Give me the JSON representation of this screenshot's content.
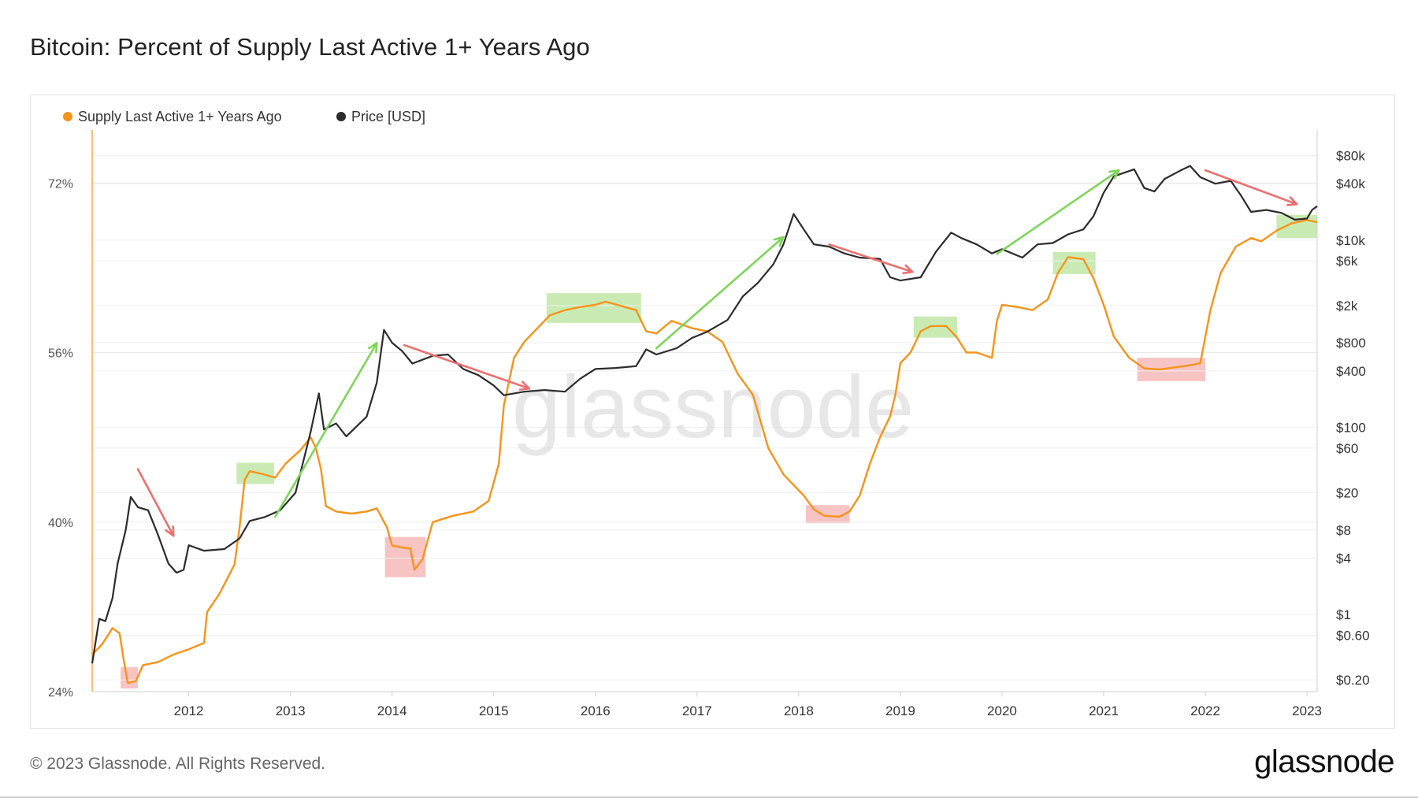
{
  "title": "Bitcoin: Percent of Supply Last Active 1+ Years Ago",
  "footer": {
    "copyright": "© 2023 Glassnode. All Rights Reserved.",
    "logo": "glassnode"
  },
  "watermark": "glassnode",
  "colors": {
    "supply": "#f7931a",
    "price": "#2b2b2b",
    "up_arrow": "#7fd45a",
    "down_arrow": "#ec6f6f",
    "green_box": "#bfe8a6",
    "red_box": "#f6b8b8"
  },
  "legend": [
    {
      "label": "Supply Last Active 1+ Years Ago",
      "color": "#f7931a"
    },
    {
      "label": "Price [USD]",
      "color": "#2b2b2b"
    }
  ],
  "chart_data": {
    "type": "line",
    "title": "Bitcoin: Percent of Supply Last Active 1+ Years Ago",
    "x_range": [
      2011.05,
      2023.1
    ],
    "x_ticks": [
      2012,
      2013,
      2014,
      2015,
      2016,
      2017,
      2018,
      2019,
      2020,
      2021,
      2022,
      2023
    ],
    "x_tick_labels": [
      "2012",
      "2013",
      "2014",
      "2015",
      "2016",
      "2017",
      "2018",
      "2019",
      "2020",
      "2021",
      "2022",
      "2023"
    ],
    "y_left": {
      "label": "Supply Last Active 1+ Years Ago",
      "range": [
        24,
        77
      ],
      "ticks": [
        24,
        40,
        56,
        72
      ],
      "tick_labels": [
        "24%",
        "40%",
        "56%",
        "72%"
      ]
    },
    "y_right": {
      "label": "Price [USD]",
      "scale": "log",
      "range": [
        0.15,
        150000
      ],
      "ticks": [
        0.2,
        0.6,
        1,
        4,
        8,
        20,
        60,
        100,
        400,
        800,
        2000,
        6000,
        10000,
        40000,
        80000
      ],
      "tick_labels": [
        "$0.20",
        "$0.60",
        "$1",
        "$4",
        "$8",
        "$20",
        "$60",
        "$100",
        "$400",
        "$800",
        "$2k",
        "$6k",
        "$10k",
        "$40k",
        "$80k"
      ]
    },
    "series": [
      {
        "name": "Supply Last Active 1+ Years Ago",
        "axis": "left",
        "unit": "%",
        "points": [
          [
            2011.05,
            27.5
          ],
          [
            2011.15,
            28.5
          ],
          [
            2011.25,
            30.0
          ],
          [
            2011.32,
            29.5
          ],
          [
            2011.36,
            27.0
          ],
          [
            2011.4,
            24.8
          ],
          [
            2011.48,
            25.0
          ],
          [
            2011.55,
            26.5
          ],
          [
            2011.7,
            26.8
          ],
          [
            2011.85,
            27.5
          ],
          [
            2012.0,
            28.0
          ],
          [
            2012.15,
            28.6
          ],
          [
            2012.18,
            31.5
          ],
          [
            2012.3,
            33.2
          ],
          [
            2012.45,
            36.0
          ],
          [
            2012.5,
            39.5
          ],
          [
            2012.55,
            44.0
          ],
          [
            2012.6,
            44.8
          ],
          [
            2012.7,
            44.6
          ],
          [
            2012.85,
            44.2
          ],
          [
            2012.95,
            45.5
          ],
          [
            2013.1,
            46.8
          ],
          [
            2013.2,
            48.0
          ],
          [
            2013.25,
            47.0
          ],
          [
            2013.3,
            45.0
          ],
          [
            2013.35,
            41.5
          ],
          [
            2013.45,
            41.0
          ],
          [
            2013.6,
            40.8
          ],
          [
            2013.75,
            41.0
          ],
          [
            2013.85,
            41.3
          ],
          [
            2013.95,
            39.5
          ],
          [
            2014.0,
            37.8
          ],
          [
            2014.1,
            37.6
          ],
          [
            2014.18,
            37.5
          ],
          [
            2014.22,
            35.5
          ],
          [
            2014.3,
            36.5
          ],
          [
            2014.4,
            40.0
          ],
          [
            2014.6,
            40.6
          ],
          [
            2014.8,
            41.0
          ],
          [
            2014.95,
            42.0
          ],
          [
            2015.05,
            45.5
          ],
          [
            2015.1,
            51.0
          ],
          [
            2015.2,
            55.5
          ],
          [
            2015.3,
            57.0
          ],
          [
            2015.45,
            58.5
          ],
          [
            2015.55,
            59.5
          ],
          [
            2015.7,
            60.0
          ],
          [
            2015.85,
            60.3
          ],
          [
            2016.0,
            60.5
          ],
          [
            2016.1,
            60.8
          ],
          [
            2016.25,
            60.4
          ],
          [
            2016.4,
            60.0
          ],
          [
            2016.5,
            58.0
          ],
          [
            2016.6,
            57.8
          ],
          [
            2016.75,
            59.0
          ],
          [
            2016.95,
            58.3
          ],
          [
            2017.1,
            58.0
          ],
          [
            2017.25,
            57.0
          ],
          [
            2017.4,
            54.0
          ],
          [
            2017.55,
            52.0
          ],
          [
            2017.7,
            47.0
          ],
          [
            2017.85,
            44.5
          ],
          [
            2017.95,
            43.5
          ],
          [
            2018.05,
            42.5
          ],
          [
            2018.15,
            41.2
          ],
          [
            2018.25,
            40.6
          ],
          [
            2018.4,
            40.5
          ],
          [
            2018.5,
            41.0
          ],
          [
            2018.6,
            42.5
          ],
          [
            2018.7,
            45.5
          ],
          [
            2018.8,
            48.0
          ],
          [
            2018.9,
            50.0
          ],
          [
            2018.95,
            52.0
          ],
          [
            2019.0,
            55.0
          ],
          [
            2019.1,
            56.0
          ],
          [
            2019.2,
            58.0
          ],
          [
            2019.3,
            58.5
          ],
          [
            2019.45,
            58.5
          ],
          [
            2019.55,
            57.5
          ],
          [
            2019.65,
            56.0
          ],
          [
            2019.75,
            56.0
          ],
          [
            2019.9,
            55.5
          ],
          [
            2019.95,
            59.0
          ],
          [
            2020.0,
            60.5
          ],
          [
            2020.15,
            60.3
          ],
          [
            2020.3,
            60.0
          ],
          [
            2020.45,
            61.0
          ],
          [
            2020.55,
            63.5
          ],
          [
            2020.65,
            65.0
          ],
          [
            2020.8,
            64.8
          ],
          [
            2020.9,
            63.0
          ],
          [
            2021.0,
            60.5
          ],
          [
            2021.1,
            57.5
          ],
          [
            2021.25,
            55.5
          ],
          [
            2021.4,
            54.5
          ],
          [
            2021.55,
            54.4
          ],
          [
            2021.7,
            54.6
          ],
          [
            2021.85,
            54.8
          ],
          [
            2021.95,
            55.0
          ],
          [
            2022.05,
            60.0
          ],
          [
            2022.15,
            63.5
          ],
          [
            2022.3,
            66.0
          ],
          [
            2022.45,
            66.8
          ],
          [
            2022.55,
            66.5
          ],
          [
            2022.7,
            67.5
          ],
          [
            2022.85,
            68.2
          ],
          [
            2023.0,
            68.5
          ],
          [
            2023.1,
            68.3
          ]
        ]
      },
      {
        "name": "Price [USD]",
        "axis": "right",
        "unit": "USD",
        "scale": "log",
        "points": [
          [
            2011.05,
            0.3
          ],
          [
            2011.12,
            0.9
          ],
          [
            2011.18,
            0.85
          ],
          [
            2011.25,
            1.5
          ],
          [
            2011.3,
            3.5
          ],
          [
            2011.38,
            8.0
          ],
          [
            2011.43,
            18.0
          ],
          [
            2011.5,
            14.0
          ],
          [
            2011.6,
            13.0
          ],
          [
            2011.7,
            7.0
          ],
          [
            2011.8,
            3.5
          ],
          [
            2011.88,
            2.8
          ],
          [
            2011.95,
            3.0
          ],
          [
            2012.0,
            5.5
          ],
          [
            2012.15,
            4.8
          ],
          [
            2012.35,
            5.0
          ],
          [
            2012.5,
            6.5
          ],
          [
            2012.6,
            10.0
          ],
          [
            2012.75,
            11.0
          ],
          [
            2012.9,
            13.0
          ],
          [
            2013.05,
            20.0
          ],
          [
            2013.2,
            90.0
          ],
          [
            2013.28,
            230.0
          ],
          [
            2013.33,
            95.0
          ],
          [
            2013.45,
            110.0
          ],
          [
            2013.55,
            80.0
          ],
          [
            2013.75,
            130.0
          ],
          [
            2013.85,
            300.0
          ],
          [
            2013.92,
            1100.0
          ],
          [
            2014.0,
            800.0
          ],
          [
            2014.1,
            650.0
          ],
          [
            2014.2,
            480.0
          ],
          [
            2014.4,
            580.0
          ],
          [
            2014.55,
            600.0
          ],
          [
            2014.7,
            420.0
          ],
          [
            2014.85,
            360.0
          ],
          [
            2015.0,
            280.0
          ],
          [
            2015.1,
            220.0
          ],
          [
            2015.3,
            240.0
          ],
          [
            2015.5,
            250.0
          ],
          [
            2015.7,
            240.0
          ],
          [
            2015.85,
            330.0
          ],
          [
            2016.0,
            420.0
          ],
          [
            2016.2,
            430.0
          ],
          [
            2016.4,
            450.0
          ],
          [
            2016.5,
            680.0
          ],
          [
            2016.6,
            600.0
          ],
          [
            2016.8,
            700.0
          ],
          [
            2016.95,
            900.0
          ],
          [
            2017.1,
            1050.0
          ],
          [
            2017.3,
            1400.0
          ],
          [
            2017.45,
            2500.0
          ],
          [
            2017.6,
            3500.0
          ],
          [
            2017.75,
            5500.0
          ],
          [
            2017.85,
            9000.0
          ],
          [
            2017.95,
            19000.0
          ],
          [
            2018.05,
            13000.0
          ],
          [
            2018.15,
            9000.0
          ],
          [
            2018.3,
            8500.0
          ],
          [
            2018.45,
            7200.0
          ],
          [
            2018.6,
            6500.0
          ],
          [
            2018.8,
            6300.0
          ],
          [
            2018.9,
            4000.0
          ],
          [
            2019.0,
            3700.0
          ],
          [
            2019.2,
            4000.0
          ],
          [
            2019.35,
            7500.0
          ],
          [
            2019.5,
            12000.0
          ],
          [
            2019.6,
            10500.0
          ],
          [
            2019.75,
            9000.0
          ],
          [
            2019.9,
            7200.0
          ],
          [
            2020.0,
            8000.0
          ],
          [
            2020.2,
            6500.0
          ],
          [
            2020.35,
            9000.0
          ],
          [
            2020.5,
            9300.0
          ],
          [
            2020.65,
            11500.0
          ],
          [
            2020.8,
            13000.0
          ],
          [
            2020.9,
            18000.0
          ],
          [
            2021.0,
            32000.0
          ],
          [
            2021.1,
            48000.0
          ],
          [
            2021.3,
            57000.0
          ],
          [
            2021.4,
            36000.0
          ],
          [
            2021.5,
            33000.0
          ],
          [
            2021.6,
            45000.0
          ],
          [
            2021.75,
            55000.0
          ],
          [
            2021.85,
            62000.0
          ],
          [
            2021.95,
            47000.0
          ],
          [
            2022.1,
            40000.0
          ],
          [
            2022.25,
            43000.0
          ],
          [
            2022.35,
            30000.0
          ],
          [
            2022.45,
            20000.0
          ],
          [
            2022.6,
            21000.0
          ],
          [
            2022.75,
            19500.0
          ],
          [
            2022.88,
            16500.0
          ],
          [
            2023.0,
            17000.0
          ],
          [
            2023.05,
            21000.0
          ],
          [
            2023.1,
            23000.0
          ]
        ]
      }
    ],
    "highlight_boxes": [
      {
        "color": "red",
        "x": [
          2011.33,
          2011.5
        ],
        "y": [
          24.3,
          26.3
        ]
      },
      {
        "color": "green",
        "x": [
          2012.47,
          2012.84
        ],
        "y": [
          43.6,
          45.6
        ]
      },
      {
        "color": "red",
        "x": [
          2013.93,
          2014.33
        ],
        "y": [
          34.8,
          38.6
        ]
      },
      {
        "color": "green",
        "x": [
          2015.52,
          2016.45
        ],
        "y": [
          58.8,
          61.6
        ]
      },
      {
        "color": "red",
        "x": [
          2018.07,
          2018.5
        ],
        "y": [
          39.9,
          41.6
        ]
      },
      {
        "color": "green",
        "x": [
          2019.13,
          2019.56
        ],
        "y": [
          57.4,
          59.4
        ]
      },
      {
        "color": "green",
        "x": [
          2020.5,
          2020.92
        ],
        "y": [
          63.4,
          65.5
        ]
      },
      {
        "color": "red",
        "x": [
          2021.33,
          2022.0
        ],
        "y": [
          53.3,
          55.5
        ]
      },
      {
        "color": "green",
        "x": [
          2022.7,
          2023.1
        ],
        "y": [
          66.8,
          69.0
        ]
      }
    ],
    "trend_arrows": [
      {
        "color": "down",
        "from": [
          2011.5,
          45.0
        ],
        "to": [
          2011.85,
          38.7
        ]
      },
      {
        "color": "up",
        "from": [
          2012.85,
          40.5
        ],
        "to": [
          2013.85,
          56.9
        ]
      },
      {
        "color": "down",
        "from": [
          2014.12,
          56.7
        ],
        "to": [
          2015.35,
          52.6
        ]
      },
      {
        "color": "up",
        "from": [
          2016.6,
          56.4
        ],
        "to": [
          2017.85,
          66.9
        ]
      },
      {
        "color": "down",
        "from": [
          2018.3,
          66.2
        ],
        "to": [
          2019.12,
          63.6
        ]
      },
      {
        "color": "up",
        "from": [
          2019.95,
          65.3
        ],
        "to": [
          2021.15,
          73.2
        ]
      },
      {
        "color": "down",
        "from": [
          2022.0,
          73.2
        ],
        "to": [
          2022.9,
          70.0
        ]
      }
    ]
  }
}
